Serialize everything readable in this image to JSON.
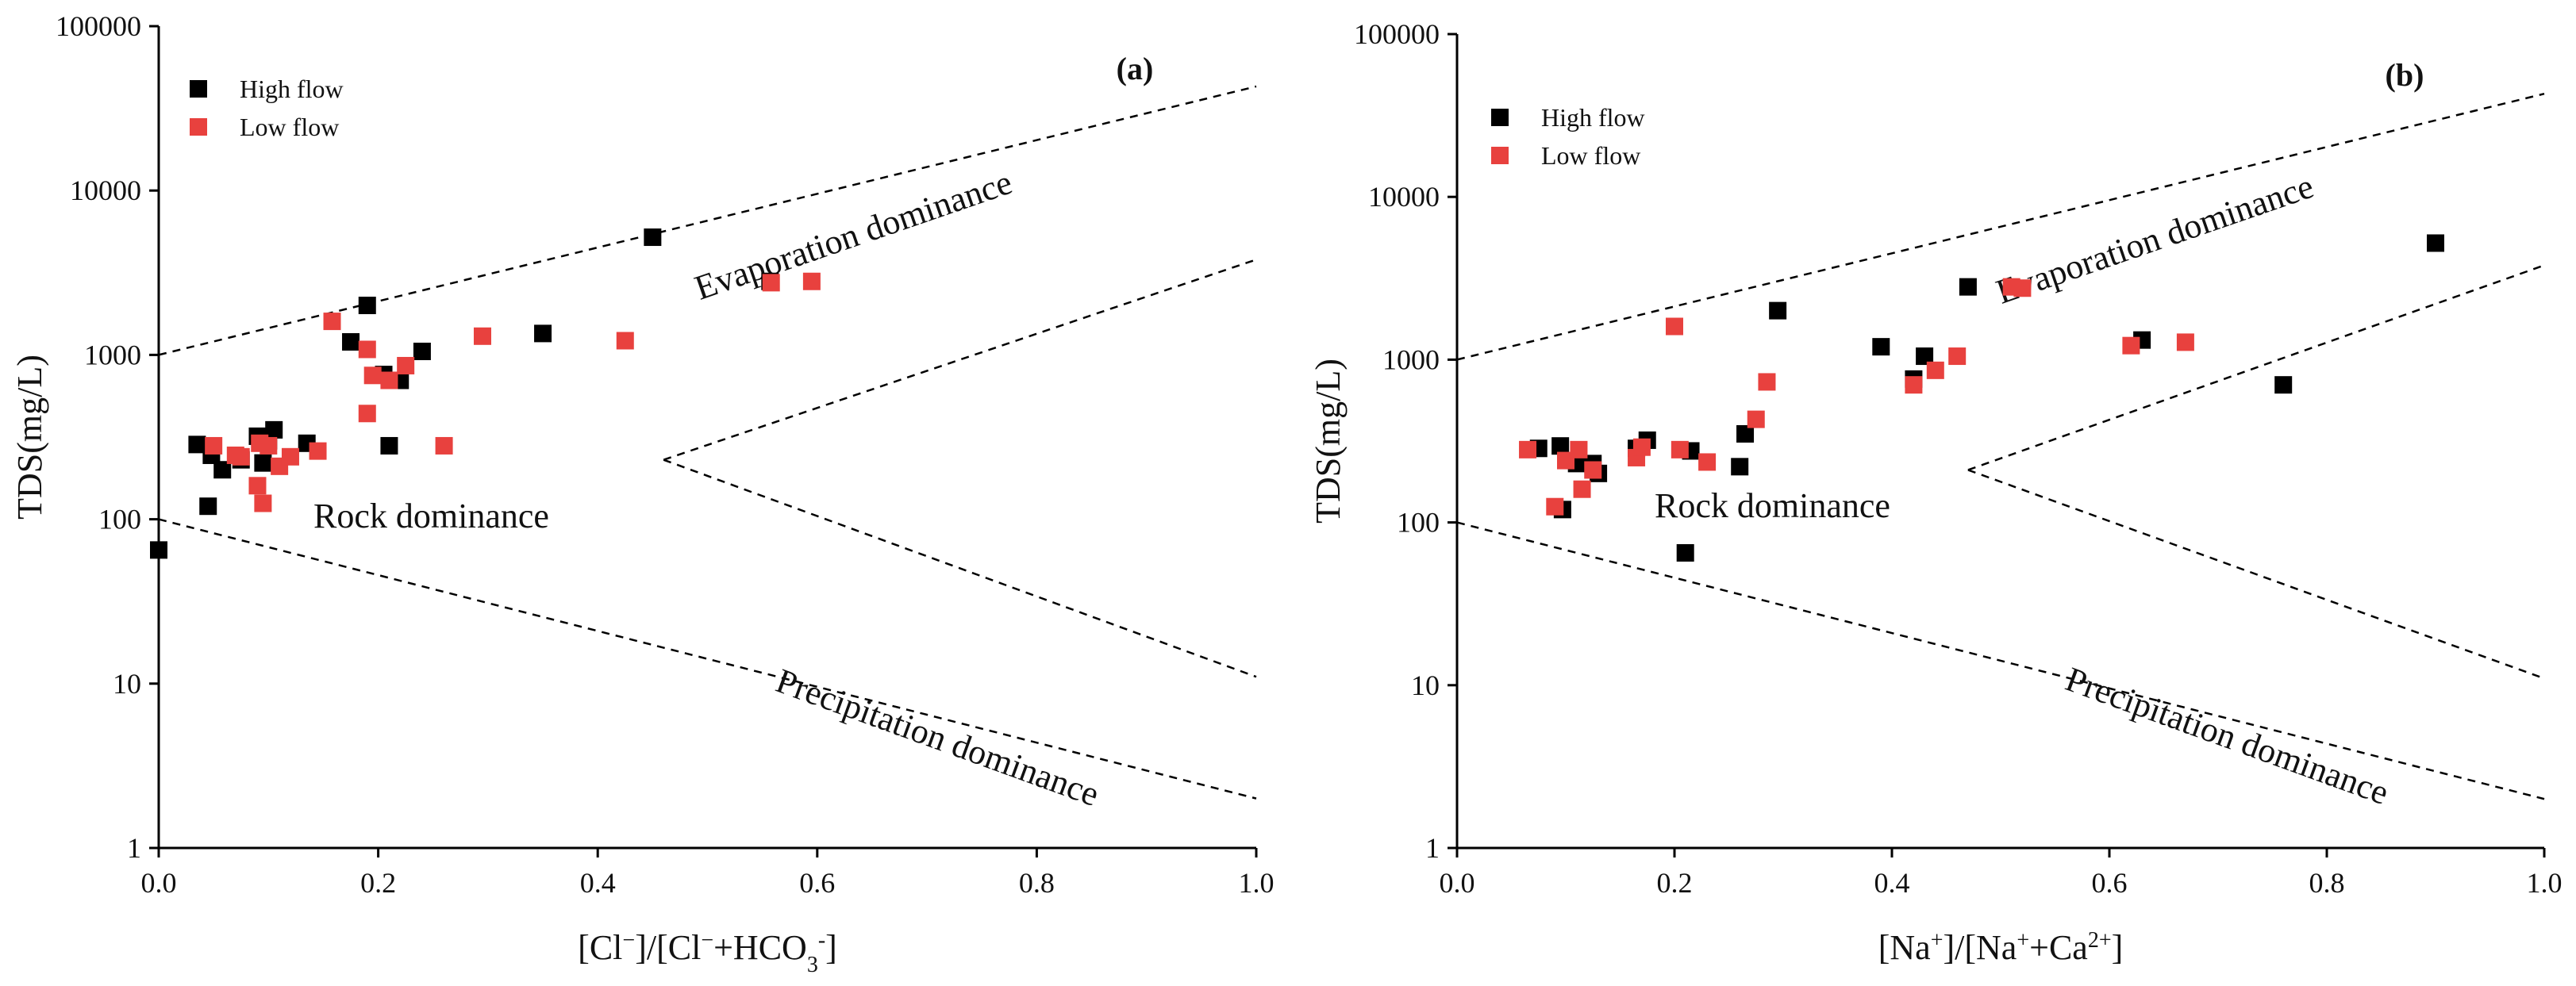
{
  "colors": {
    "high_flow": "#000000",
    "low_flow": "#e8413e",
    "axis": "#000000",
    "background": "#ffffff"
  },
  "chart_data": [
    {
      "type": "scatter",
      "panel": "(a)",
      "ylabel": "TDS(mg/L)",
      "xlabel_parts": [
        "[Cl",
        "−",
        "]/[Cl",
        "−",
        "+HCO",
        "3",
        "-",
        "]"
      ],
      "xlim": [
        0,
        1
      ],
      "ylim": [
        1,
        100000
      ],
      "yscale": "log",
      "x_ticks": [
        "0.0",
        "0.2",
        "0.4",
        "0.6",
        "0.8",
        "1.0"
      ],
      "y_ticks": [
        "1",
        "10",
        "100",
        "1000",
        "10000",
        "100000"
      ],
      "legend": [
        "High flow",
        "Low flow"
      ],
      "legend_position": "top-left",
      "regions": [
        "Evaporation dominance",
        "Rock dominance",
        "Precipitation dominance"
      ],
      "boundaries": [
        [
          [
            0,
            1000
          ],
          [
            1,
            43000
          ]
        ],
        [
          [
            0,
            100
          ],
          [
            1,
            2
          ]
        ],
        [
          [
            0.46,
            230
          ],
          [
            1,
            3800
          ]
        ],
        [
          [
            0.46,
            230
          ],
          [
            1,
            11
          ]
        ]
      ],
      "series": [
        {
          "name": "High flow",
          "points": [
            [
              0.0,
              65
            ],
            [
              0.035,
              285
            ],
            [
              0.045,
              120
            ],
            [
              0.048,
              245
            ],
            [
              0.058,
              200
            ],
            [
              0.075,
              230
            ],
            [
              0.09,
              320
            ],
            [
              0.095,
              220
            ],
            [
              0.1,
              300
            ],
            [
              0.105,
              350
            ],
            [
              0.135,
              290
            ],
            [
              0.175,
              1200
            ],
            [
              0.19,
              2000
            ],
            [
              0.205,
              760
            ],
            [
              0.21,
              280
            ],
            [
              0.22,
              700
            ],
            [
              0.24,
              1050
            ],
            [
              0.35,
              1350
            ],
            [
              0.45,
              5200
            ],
            [
              0.557,
              2800
            ]
          ]
        },
        {
          "name": "Low flow",
          "points": [
            [
              0.05,
              280
            ],
            [
              0.07,
              245
            ],
            [
              0.075,
              240
            ],
            [
              0.09,
              160
            ],
            [
              0.092,
              290
            ],
            [
              0.095,
              125
            ],
            [
              0.1,
              280
            ],
            [
              0.11,
              210
            ],
            [
              0.12,
              240
            ],
            [
              0.145,
              260
            ],
            [
              0.158,
              1600
            ],
            [
              0.19,
              440
            ],
            [
              0.19,
              1080
            ],
            [
              0.195,
              750
            ],
            [
              0.21,
              700
            ],
            [
              0.225,
              860
            ],
            [
              0.26,
              280
            ],
            [
              0.295,
              1300
            ],
            [
              0.425,
              1220
            ],
            [
              0.558,
              2750
            ],
            [
              0.595,
              2800
            ]
          ]
        }
      ]
    },
    {
      "type": "scatter",
      "panel": "(b)",
      "ylabel": "TDS(mg/L)",
      "xlabel_parts": [
        "[Na",
        "+",
        "]/[Na",
        "+",
        "+Ca",
        "2+",
        "]"
      ],
      "xlim": [
        0,
        1
      ],
      "ylim": [
        1,
        100000
      ],
      "yscale": "log",
      "x_ticks": [
        "0.0",
        "0.2",
        "0.4",
        "0.6",
        "0.8",
        "1.0"
      ],
      "y_ticks": [
        "1",
        "10",
        "100",
        "1000",
        "10000",
        "100000"
      ],
      "legend": [
        "High flow",
        "Low flow"
      ],
      "legend_position": "top-left",
      "regions": [
        "Evaporation dominance",
        "Rock dominance",
        "Precipitation dominance"
      ],
      "boundaries": [
        [
          [
            0,
            1000
          ],
          [
            1,
            43000
          ]
        ],
        [
          [
            0,
            100
          ],
          [
            1,
            2
          ]
        ],
        [
          [
            0.47,
            210
          ],
          [
            1,
            3800
          ]
        ],
        [
          [
            0.47,
            210
          ],
          [
            1,
            11
          ]
        ]
      ],
      "series": [
        {
          "name": "High flow",
          "points": [
            [
              0.075,
              285
            ],
            [
              0.095,
              295
            ],
            [
              0.097,
              120
            ],
            [
              0.11,
              230
            ],
            [
              0.125,
              230
            ],
            [
              0.13,
              200
            ],
            [
              0.165,
              285
            ],
            [
              0.175,
              320
            ],
            [
              0.21,
              65
            ],
            [
              0.215,
              275
            ],
            [
              0.26,
              220
            ],
            [
              0.265,
              350
            ],
            [
              0.295,
              2000
            ],
            [
              0.39,
              1200
            ],
            [
              0.42,
              760
            ],
            [
              0.43,
              1050
            ],
            [
              0.47,
              2800
            ],
            [
              0.63,
              1320
            ],
            [
              0.76,
              700
            ],
            [
              0.9,
              5200
            ]
          ]
        },
        {
          "name": "Low flow",
          "points": [
            [
              0.065,
              280
            ],
            [
              0.09,
              125
            ],
            [
              0.1,
              240
            ],
            [
              0.112,
              280
            ],
            [
              0.115,
              160
            ],
            [
              0.125,
              210
            ],
            [
              0.165,
              250
            ],
            [
              0.17,
              290
            ],
            [
              0.2,
              1600
            ],
            [
              0.205,
              280
            ],
            [
              0.23,
              235
            ],
            [
              0.275,
              430
            ],
            [
              0.285,
              730
            ],
            [
              0.42,
              700
            ],
            [
              0.44,
              860
            ],
            [
              0.46,
              1050
            ],
            [
              0.51,
              2800
            ],
            [
              0.52,
              2750
            ],
            [
              0.62,
              1220
            ],
            [
              0.67,
              1280
            ]
          ]
        }
      ]
    }
  ]
}
